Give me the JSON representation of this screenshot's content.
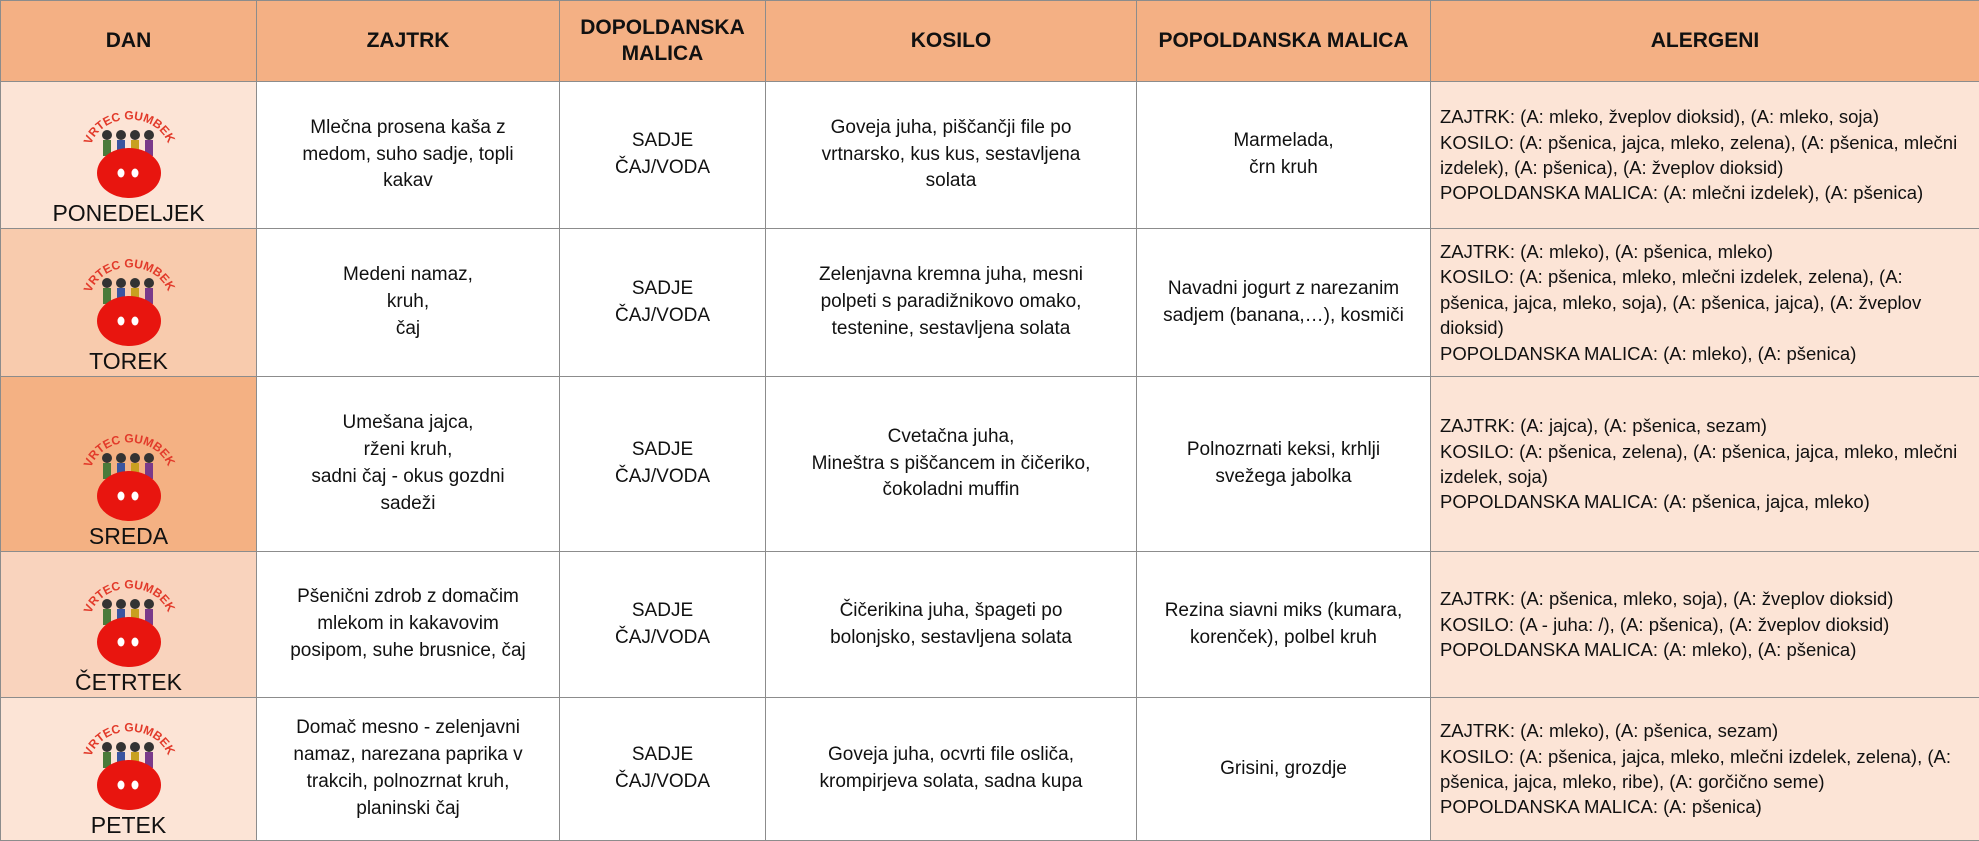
{
  "table": {
    "header": [
      "DAN",
      "ZAJTRK",
      "DOPOLDANSKA MALICA",
      "KOSILO",
      "POPOLDANSKA MALICA",
      "ALERGENI"
    ],
    "logo_text": "VRTEC GUMBEK",
    "rows": [
      {
        "day": "PONEDELJEK",
        "zajtrk": [
          "Mlečna prosena kaša z",
          "medom, suho sadje, topli",
          "kakav"
        ],
        "dopoldanska": [
          "SADJE",
          "ČAJ/VODA"
        ],
        "kosilo": [
          "Goveja juha, piščančji file po",
          "vrtnarsko, kus kus, sestavljena",
          "solata"
        ],
        "popoldanska": [
          "Marmelada,",
          "črn kruh"
        ],
        "alergeni": [
          "ZAJTRK: (A: mleko, žveplov dioksid), (A: mleko, soja)",
          "KOSILO: (A: pšenica, jajca, mleko, zelena), (A: pšenica, mlečni izdelek), (A: pšenica), (A: žveplov dioksid)",
          "POPOLDANSKA MALICA: (A: mlečni izdelek), (A: pšenica)"
        ]
      },
      {
        "day": "TOREK",
        "zajtrk": [
          "Medeni namaz,",
          "kruh,",
          "čaj"
        ],
        "dopoldanska": [
          "SADJE",
          "ČAJ/VODA"
        ],
        "kosilo": [
          "Zelenjavna kremna juha, mesni",
          "polpeti s paradižnikovo omako,",
          "testenine, sestavljena solata"
        ],
        "popoldanska": [
          "Navadni jogurt z narezanim",
          "sadjem (banana,…), kosmiči"
        ],
        "alergeni": [
          "ZAJTRK: (A: mleko), (A: pšenica, mleko)",
          "KOSILO: (A: pšenica, mleko, mlečni izdelek, zelena), (A: pšenica, jajca, mleko, soja), (A: pšenica, jajca), (A: žveplov dioksid)",
          "POPOLDANSKA MALICA: (A: mleko), (A: pšenica)"
        ]
      },
      {
        "day": "SREDA",
        "zajtrk": [
          "Umešana jajca,",
          "rženi kruh,",
          "sadni čaj - okus gozdni",
          "sadeži"
        ],
        "dopoldanska": [
          "SADJE",
          "ČAJ/VODA"
        ],
        "kosilo": [
          "Cvetačna juha,",
          "Mineštra s piščancem in čičeriko,",
          "čokoladni muffin"
        ],
        "popoldanska": [
          "Polnozrnati keksi, krhlji",
          "svežega jabolka"
        ],
        "alergeni": [
          "ZAJTRK: (A: jajca), (A: pšenica, sezam)",
          "KOSILO: (A: pšenica, zelena), (A: pšenica, jajca, mleko, mlečni izdelek, soja)",
          "POPOLDANSKA MALICA: (A: pšenica, jajca, mleko)"
        ]
      },
      {
        "day": "ČETRTEK",
        "zajtrk": [
          "Pšenični zdrob z domačim",
          "mlekom in kakavovim",
          "posipom, suhe brusnice, čaj"
        ],
        "dopoldanska": [
          "SADJE",
          "ČAJ/VODA"
        ],
        "kosilo": [
          "Čičerikina juha, špageti po",
          "bolonjsko, sestavljena solata"
        ],
        "popoldanska": [
          "Rezina siavni miks (kumara,",
          "korenček), polbel kruh"
        ],
        "alergeni": [
          "ZAJTRK: (A: pšenica, mleko, soja), (A: žveplov dioksid)",
          "KOSILO: (A - juha: /), (A: pšenica), (A: žveplov dioksid)",
          "POPOLDANSKA MALICA: (A: mleko), (A: pšenica)"
        ]
      },
      {
        "day": "PETEK",
        "zajtrk": [
          "Domač mesno - zelenjavni",
          "namaz, narezana paprika v",
          "trakcih, polnozrnat kruh,",
          "planinski čaj"
        ],
        "dopoldanska": [
          "SADJE",
          "ČAJ/VODA"
        ],
        "kosilo": [
          "Goveja juha, ocvrti file osliča,",
          "krompirjeva solata, sadna kupa"
        ],
        "popoldanska": [
          "Grisini, grozdje"
        ],
        "alergeni": [
          "ZAJTRK: (A: mleko), (A: pšenica, sezam)",
          "KOSILO: (A: pšenica, jajca, mleko, mlečni izdelek, zelena), (A: pšenica, jajca, mleko, ribe), (A: gorčično seme)",
          "POPOLDANSKA MALICA: (A: pšenica)"
        ]
      }
    ]
  }
}
